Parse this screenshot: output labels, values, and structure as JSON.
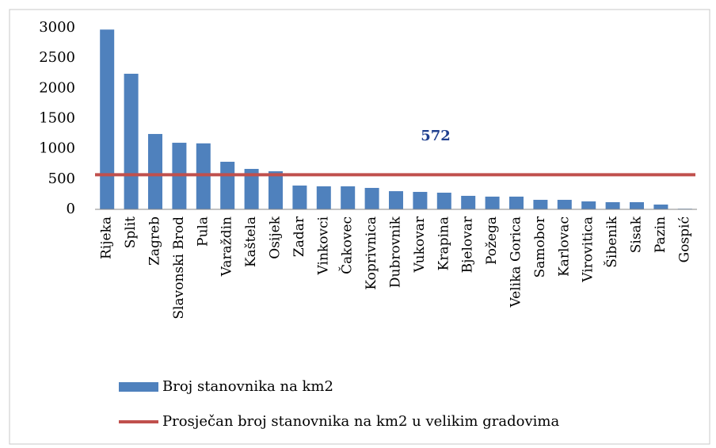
{
  "chart_data": {
    "type": "bar",
    "categories": [
      "Rijeka",
      "Split",
      "Zagreb",
      "Slavonski Brod",
      "Pula",
      "Varaždin",
      "Kaštela",
      "Osijek",
      "Zadar",
      "Vinkovci",
      "Čakovec",
      "Koprivnica",
      "Dubrovnik",
      "Vukovar",
      "Krapina",
      "Bjelovar",
      "Požega",
      "Velika Gorica",
      "Samobor",
      "Karlovac",
      "Virovitica",
      "Šibenik",
      "Sisak",
      "Pazin",
      "Gospić"
    ],
    "series": [
      {
        "name": "Broj stanovnika na km2",
        "type": "bar",
        "color": "#4f81bd",
        "values": [
          2970,
          2240,
          1245,
          1100,
          1090,
          786,
          668,
          629,
          393,
          380,
          380,
          354,
          300,
          288,
          275,
          223,
          210,
          210,
          157,
          157,
          131,
          118,
          118,
          79,
          10
        ]
      },
      {
        "name": "Prosječan broj stanovnika na km2 u velikim gradovima",
        "type": "line",
        "color": "#c0504d",
        "annotation": "572",
        "values": [
          572,
          572,
          572,
          572,
          572,
          572,
          572,
          572,
          572,
          572,
          572,
          572,
          572,
          572,
          572,
          572,
          572,
          572,
          572,
          572,
          572,
          572,
          572,
          572,
          572
        ]
      }
    ],
    "ylim": [
      0,
      3000
    ],
    "yticks": [
      0,
      500,
      1000,
      1500,
      2000,
      2500,
      3000
    ],
    "grid": false,
    "legend": "bottom"
  }
}
